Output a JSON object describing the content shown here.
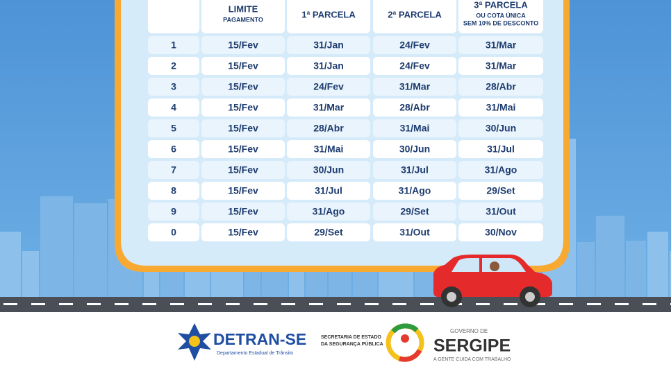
{
  "table": {
    "header": [
      {
        "lines": [
          "LIMITE",
          "PAGAMENTO"
        ]
      },
      {
        "lines": [
          "1ª PARCELA"
        ]
      },
      {
        "lines": [
          "2ª PARCELA"
        ]
      },
      {
        "lines": [
          "3ª PARCELA",
          "OU COTA ÚNICA",
          "SEM 10% DE DESCONTO"
        ]
      }
    ],
    "rows": [
      [
        "1",
        "15/Fev",
        "31/Jan",
        "24/Fev",
        "31/Mar"
      ],
      [
        "2",
        "15/Fev",
        "31/Jan",
        "24/Fev",
        "31/Mar"
      ],
      [
        "3",
        "15/Fev",
        "24/Fev",
        "31/Mar",
        "28/Abr"
      ],
      [
        "4",
        "15/Fev",
        "31/Mar",
        "28/Abr",
        "31/Mai"
      ],
      [
        "5",
        "15/Fev",
        "28/Abr",
        "31/Mai",
        "30/Jun"
      ],
      [
        "6",
        "15/Fev",
        "31/Mai",
        "30/Jun",
        "31/Jul"
      ],
      [
        "7",
        "15/Fev",
        "30/Jun",
        "31/Jul",
        "31/Ago"
      ],
      [
        "8",
        "15/Fev",
        "31/Jul",
        "31/Ago",
        "29/Set"
      ],
      [
        "9",
        "15/Fev",
        "31/Ago",
        "29/Set",
        "31/Out"
      ],
      [
        "0",
        "15/Fev",
        "29/Set",
        "31/Out",
        "30/Nov"
      ]
    ]
  },
  "footer": {
    "detran": {
      "name": "DETRAN-SE",
      "subtitle": "Departamento Estadual de Trânsito"
    },
    "secretaria": [
      "SECRETARIA DE ESTADO",
      "DA SEGURANÇA PÚBLICA"
    ],
    "governo": {
      "prefix": "GOVERNO DE",
      "name": "SERGIPE",
      "slogan": "A GENTE CUIDA COM TRABALHO"
    }
  }
}
